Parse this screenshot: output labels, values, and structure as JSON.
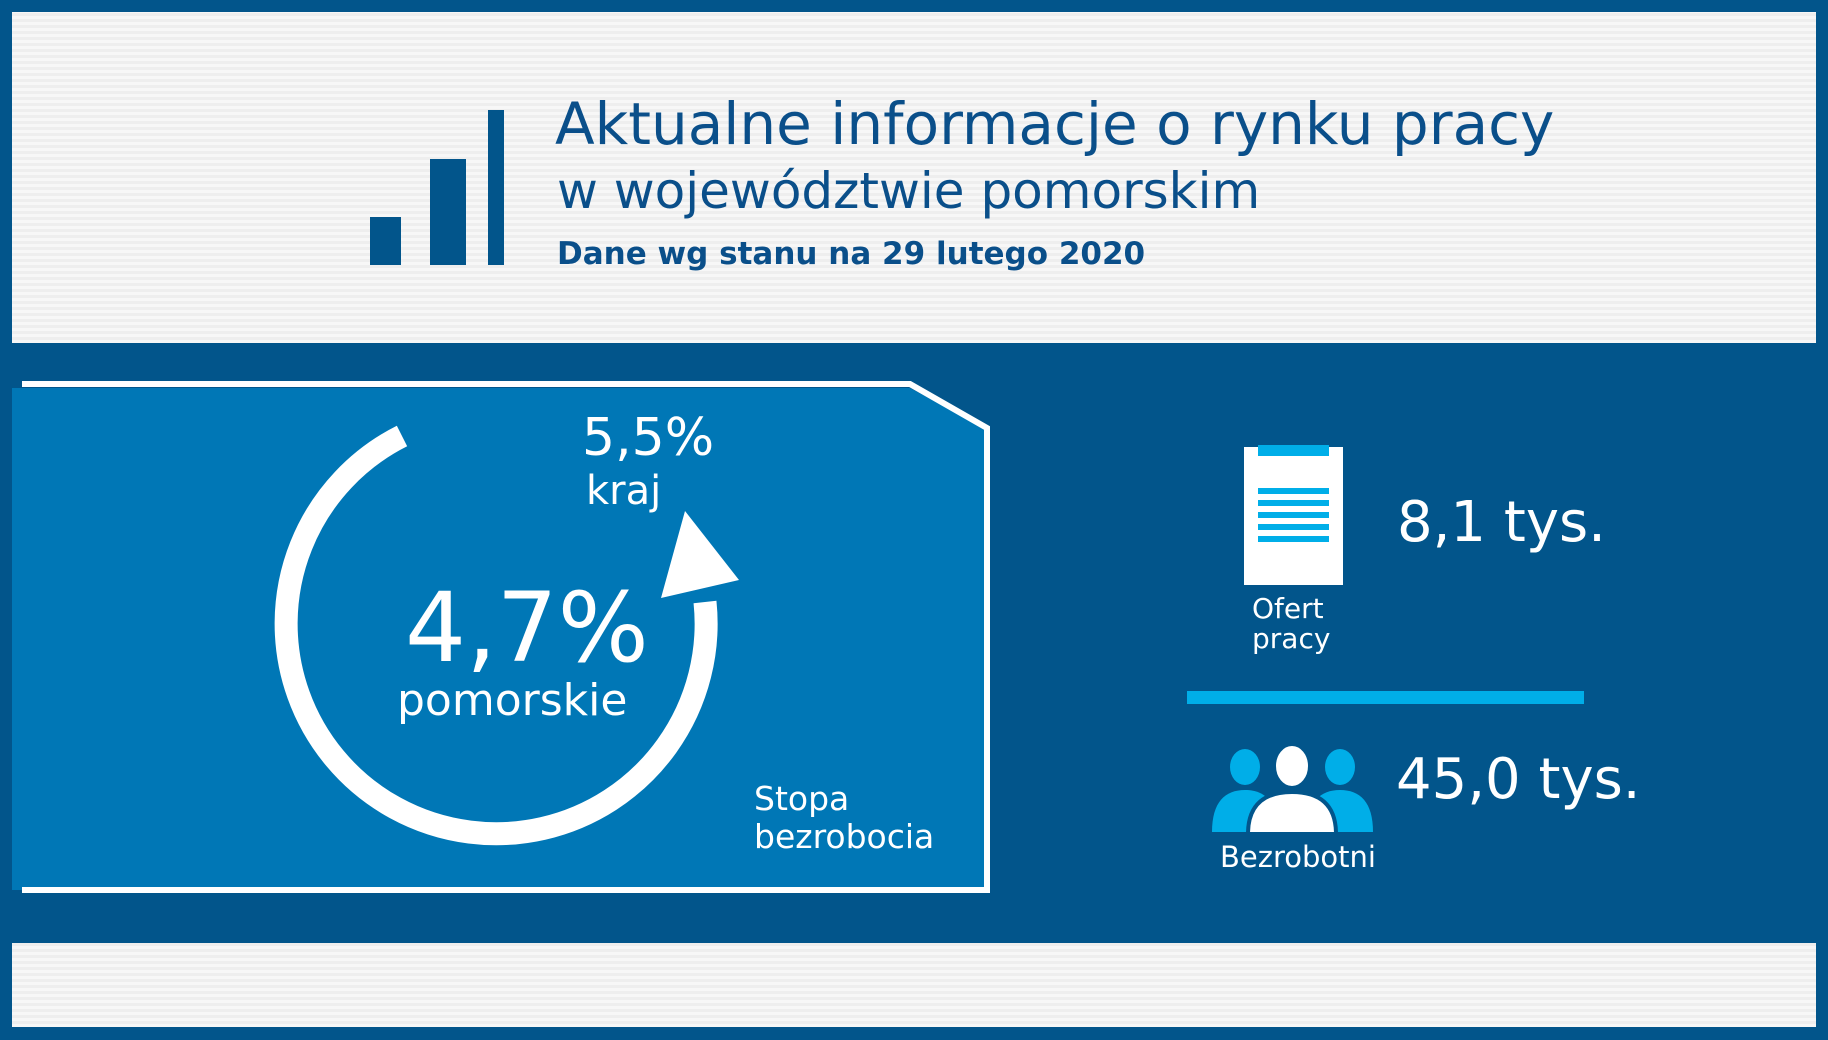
{
  "header": {
    "title_line1": "Aktualne informacje o rynku pracy",
    "title_line2": "w województwie pomorskim",
    "subtitle": "Dane wg stanu na 29 lutego 2020",
    "icon": "bar-chart-icon"
  },
  "unemployment": {
    "national_rate": "5,5%",
    "national_label": "kraj",
    "regional_rate": "4,7%",
    "regional_label": "pomorskie",
    "caption_line1": "Stopa",
    "caption_line2": "bezrobocia",
    "icon": "circular-arrow-icon"
  },
  "job_offers": {
    "value": "8,1 tys.",
    "label_line1": "Ofert",
    "label_line2": "pracy",
    "icon": "clipboard-icon"
  },
  "unemployed": {
    "value": "45,0 tys.",
    "label": "Bezrobotni",
    "icon": "people-icon"
  },
  "colors": {
    "navy": "#02558b",
    "card_blue": "#0077b6",
    "accent_cyan": "#00aee8",
    "title_text": "#0a4f8a",
    "white": "#ffffff"
  }
}
